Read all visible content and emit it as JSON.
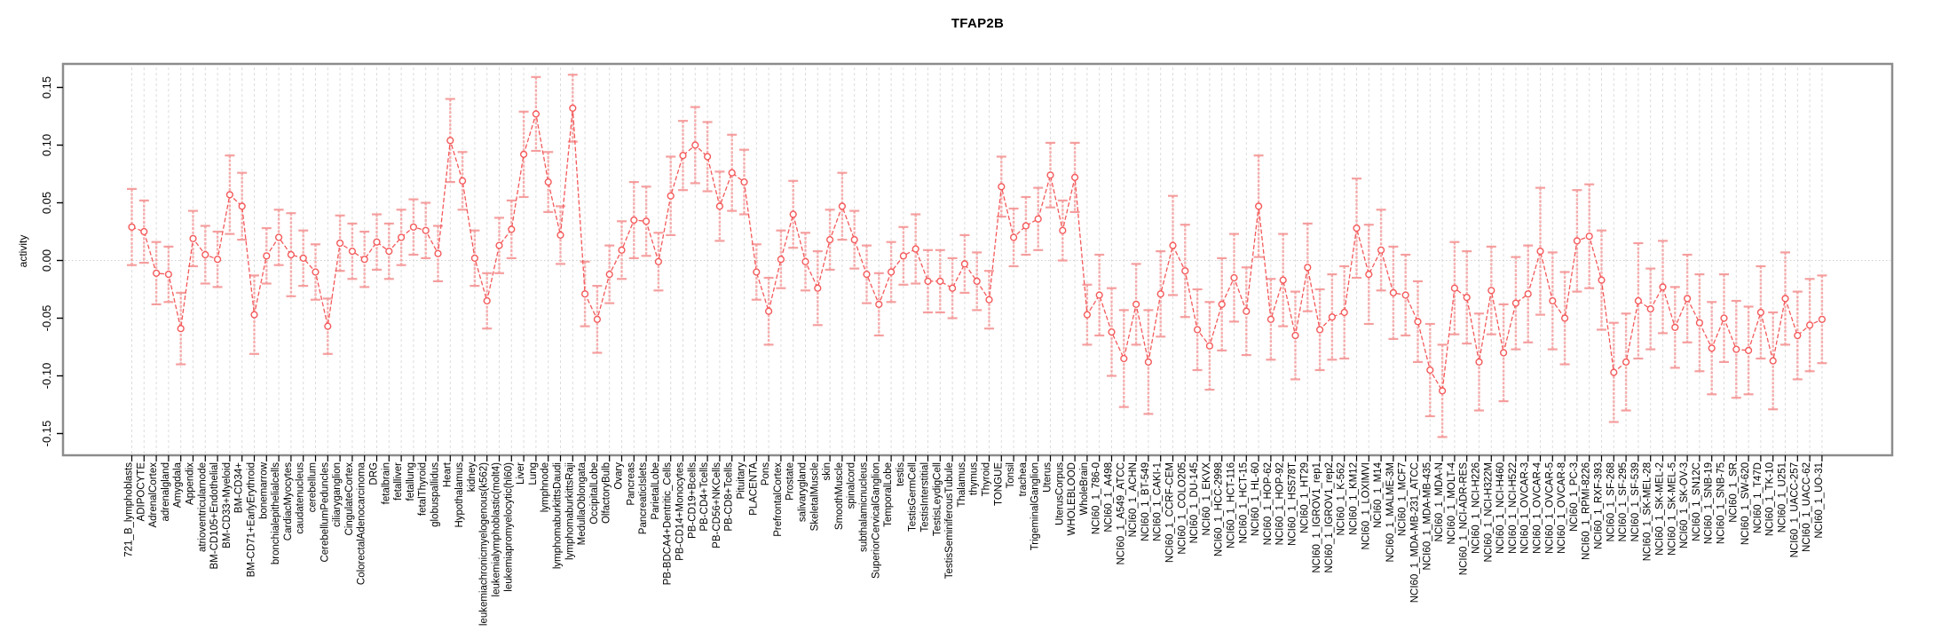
{
  "chart_data": {
    "type": "scatter",
    "subtype": "pointrange-errorbars",
    "title": "TFAP2B",
    "xlabel": "",
    "ylabel": "activity",
    "ylim": [
      -0.169,
      0.17
    ],
    "ytick_labels": [
      "-0.15",
      "-0.10",
      "-0.05",
      "0.00",
      "0.05",
      "0.10",
      "0.15"
    ],
    "ytick_values": [
      -0.15,
      -0.1,
      -0.05,
      0.0,
      0.05,
      0.1,
      0.15
    ],
    "grid": "vertical-dashed-per-category, dotted-zero-line",
    "legend_position": "none",
    "colors": {
      "series": "#f4595a",
      "error_bar": "#f59595",
      "grid_line": "#dcdcdc",
      "zero_line": "#d0d0d0",
      "box_border": "#8c8c8c",
      "axis": "#000000",
      "background": "#ffffff"
    },
    "categories": [
      "721_B_lymphoblasts",
      "ADIPOCYTE",
      "AdrenalCortex",
      "adrenalgland",
      "Amygdala",
      "Appendix",
      "atrioventricularnode",
      "BM-CD105+Endothelial",
      "BM-CD33+Myeloid",
      "BM-CD34+",
      "BM-CD71+EarlyErythroid",
      "bonemarrow",
      "bronchialepithelialcells",
      "CardiacMyocytes",
      "caudatenucleus",
      "cerebellum",
      "CerebellumPeduncles",
      "ciliaryganglion",
      "CingulateCortex",
      "ColorectalAdenocarcinoma",
      "DRG",
      "fetalbrain",
      "fetalliver",
      "fetallung",
      "fetalThyroid",
      "globuspallidus",
      "Heart",
      "Hypothalamus",
      "kidney",
      "leukemiachronicmyelogenous(k562)",
      "leukemialymphoblastic(molt4)",
      "leukemiapromyelocytic(hl60)",
      "Liver",
      "Lung",
      "lymphnode",
      "lymphomaburkittsDaudi",
      "lymphomaburkittsRaji",
      "MedullaOblongata",
      "OccipitalLobe",
      "OlfactoryBulb",
      "Ovary",
      "Pancreas",
      "PancreaticIslets",
      "ParietalLobe",
      "PB-BDCA4+Dentritic_Cells",
      "PB-CD14+Monocytes",
      "PB-CD19+Bcells",
      "PB-CD4+Tcells",
      "PB-CD56+NKCells",
      "PB-CD8+Tcells",
      "Pituitary",
      "PLACENTA",
      "Pons",
      "PrefrontalCortex",
      "Prostate",
      "salivarygland",
      "SkeletalMuscle",
      "skin",
      "SmoothMuscle",
      "spinalcord",
      "subthalamicnucleus",
      "SuperiorCervicalGanglion",
      "TemporalLobe",
      "testis",
      "TestisGermCell",
      "TestisInterstitial",
      "TestisLeydigCell",
      "TestisSeminiferousTubule",
      "Thalamus",
      "thymus",
      "Thyroid",
      "TONGUE",
      "Tonsil",
      "trachea",
      "TrigeminalGanglion",
      "Uterus",
      "UterusCorpus",
      "WHOLEBLOOD",
      "WholeBrain",
      "NCI60_1_786-0",
      "NCI60_1_A498",
      "NCI60_1_A549_ATCC",
      "NCI60_1_ACHN",
      "NCI60_1_BT-549",
      "NCI60_1_CAKI-1",
      "NCI60_1_CCRF-CEM",
      "NCI60_1_COLO205",
      "NCI60_1_DU-145",
      "NCI60_1_EKVX",
      "NCI60_1_HCC-2998",
      "NCI60_1_HCT-116",
      "NCI60_1_HCT-15",
      "NCI60_1_HL-60",
      "NCI60_1_HOP-62",
      "NCI60_1_HOP-92",
      "NCI60_1_HS578T",
      "NCI60_1_HT29",
      "NCI60_1_IGROV1_rep1",
      "NCI60_1_IGROV1_rep2",
      "NCI60_1_K-562",
      "NCI60_1_KM12",
      "NCI60_1_LOXIMVI",
      "NCI60_1_M14",
      "NCI60_1_MALME-3M",
      "NCI60_1_MCF7",
      "NCI60_1_MDA-MB-231_ATCC",
      "NCI60_1_MDA-MB-435",
      "NCI60_1_MDA-N",
      "NCI60_1_MOLT-4",
      "NCI60_1_NCI-ADR-RES",
      "NCI60_1_NCI-H226",
      "NCI60_1_NCI-H322M",
      "NCI60_1_NCI-H460",
      "NCI60_1_NCI-H522",
      "NCI60_1_OVCAR-3",
      "NCI60_1_OVCAR-4",
      "NCI60_1_OVCAR-5",
      "NCI60_1_OVCAR-8",
      "NCI60_1_PC-3",
      "NCI60_1_RPMI-8226",
      "NCI60_1_RXF-393",
      "NCI60_1_SF-268",
      "NCI60_1_SF-295",
      "NCI60_1_SF-539",
      "NCI60_1_SK-MEL-28",
      "NCI60_1_SK-MEL-2",
      "NCI60_1_SK-MEL-5",
      "NCI60_1_SK-OV-3",
      "NCI60_1_SN12C",
      "NCI60_1_SNB-19",
      "NCI60_1_SNB-75",
      "NCI60_1_SR",
      "NCI60_1_SW-620",
      "NCI60_1_T47D",
      "NCI60_1_TK-10",
      "NCI60_1_U251",
      "NCI60_1_UACC-257",
      "NCI60_1_UACC-62",
      "NCI60_1_UO-31"
    ],
    "values": [
      0.029,
      0.025,
      -0.011,
      -0.012,
      -0.059,
      0.019,
      0.005,
      0.001,
      0.057,
      0.047,
      -0.047,
      0.004,
      0.02,
      0.005,
      0.002,
      -0.01,
      -0.057,
      0.015,
      0.008,
      0.001,
      0.016,
      0.008,
      0.02,
      0.029,
      0.026,
      0.006,
      0.104,
      0.069,
      0.002,
      -0.035,
      0.013,
      0.027,
      0.092,
      0.127,
      0.068,
      0.022,
      0.132,
      -0.029,
      -0.051,
      -0.012,
      0.009,
      0.035,
      0.034,
      -0.001,
      0.056,
      0.091,
      0.1,
      0.09,
      0.047,
      0.076,
      0.068,
      -0.01,
      -0.044,
      0.001,
      0.04,
      -0.001,
      -0.024,
      0.018,
      0.047,
      0.018,
      -0.012,
      -0.038,
      -0.01,
      0.004,
      0.01,
      -0.018,
      -0.018,
      -0.024,
      -0.003,
      -0.018,
      -0.034,
      0.064,
      0.02,
      0.03,
      0.036,
      0.074,
      0.026,
      0.072,
      -0.047,
      -0.03,
      -0.062,
      -0.085,
      -0.038,
      -0.088,
      -0.029,
      0.013,
      -0.009,
      -0.06,
      -0.074,
      -0.038,
      -0.015,
      -0.044,
      0.047,
      -0.051,
      -0.017,
      -0.065,
      -0.006,
      -0.06,
      -0.049,
      -0.045,
      0.028,
      -0.012,
      0.009,
      -0.028,
      -0.03,
      -0.053,
      -0.095,
      -0.113,
      -0.024,
      -0.032,
      -0.088,
      -0.026,
      -0.08,
      -0.037,
      -0.029,
      0.008,
      -0.035,
      -0.05,
      0.017,
      0.021,
      -0.017,
      -0.097,
      -0.088,
      -0.035,
      -0.042,
      -0.023,
      -0.058,
      -0.033,
      -0.054,
      -0.076,
      -0.05,
      -0.077,
      -0.078,
      -0.045,
      -0.087,
      -0.033,
      -0.065,
      -0.056,
      -0.051
    ],
    "errors": [
      0.033,
      0.027,
      0.027,
      0.024,
      0.031,
      0.024,
      0.025,
      0.024,
      0.034,
      0.029,
      0.034,
      0.024,
      0.024,
      0.036,
      0.024,
      0.024,
      0.024,
      0.024,
      0.024,
      0.024,
      0.024,
      0.024,
      0.024,
      0.024,
      0.024,
      0.024,
      0.036,
      0.025,
      0.024,
      0.024,
      0.024,
      0.025,
      0.037,
      0.032,
      0.026,
      0.025,
      0.029,
      0.028,
      0.029,
      0.025,
      0.025,
      0.033,
      0.03,
      0.025,
      0.034,
      0.03,
      0.033,
      0.03,
      0.03,
      0.033,
      0.028,
      0.024,
      0.029,
      0.025,
      0.029,
      0.025,
      0.032,
      0.026,
      0.029,
      0.025,
      0.025,
      0.027,
      0.026,
      0.025,
      0.03,
      0.027,
      0.027,
      0.026,
      0.025,
      0.025,
      0.025,
      0.026,
      0.025,
      0.025,
      0.027,
      0.028,
      0.026,
      0.03,
      0.026,
      0.035,
      0.038,
      0.042,
      0.035,
      0.045,
      0.037,
      0.043,
      0.04,
      0.035,
      0.038,
      0.04,
      0.038,
      0.038,
      0.044,
      0.035,
      0.04,
      0.038,
      0.038,
      0.035,
      0.037,
      0.04,
      0.043,
      0.043,
      0.035,
      0.04,
      0.035,
      0.035,
      0.04,
      0.04,
      0.04,
      0.04,
      0.042,
      0.038,
      0.042,
      0.04,
      0.042,
      0.055,
      0.042,
      0.04,
      0.044,
      0.045,
      0.043,
      0.043,
      0.042,
      0.05,
      0.035,
      0.04,
      0.035,
      0.038,
      0.042,
      0.04,
      0.038,
      0.042,
      0.038,
      0.04,
      0.042,
      0.04,
      0.038,
      0.04,
      0.038
    ]
  }
}
